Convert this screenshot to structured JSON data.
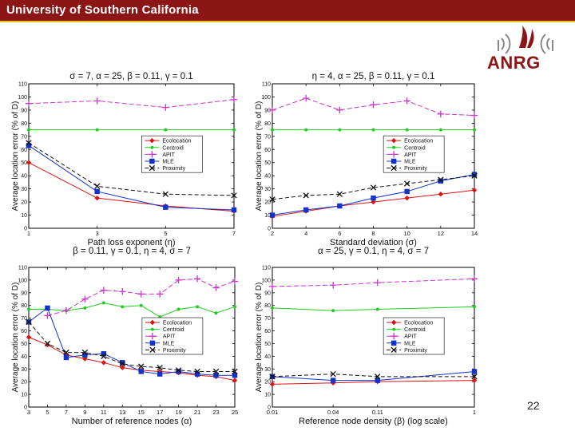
{
  "header": {
    "title": "University of Southern California"
  },
  "logo": {
    "text": "ANRG"
  },
  "page_number": "22",
  "colors": {
    "header_bg": "#8c1515",
    "header_line": "#f0c020",
    "ecolocation": "#dd1111",
    "centroid": "#22cc22",
    "apit": "#cc33cc",
    "mle": "#1133cc",
    "proximity": "#111111"
  },
  "chart_data": [
    {
      "type": "line",
      "title": "σ = 7, α = 25, β = 0.11, γ = 0.1",
      "xlabel": "Path loss exponent (η)",
      "ylabel": "Average location error (% of D)",
      "xlim": [
        1,
        7
      ],
      "ylim": [
        0,
        110
      ],
      "xscale": "linear",
      "xticks": [
        1,
        3,
        5,
        7
      ],
      "xticklabels": [
        "1",
        "3",
        "5",
        "7"
      ],
      "yticks": [
        0,
        10,
        20,
        30,
        40,
        50,
        60,
        70,
        80,
        90,
        100,
        110
      ],
      "yticklabels": [
        "0",
        "10",
        "20",
        "30",
        "40",
        "50",
        "60",
        "70",
        "80",
        "90",
        "100",
        "110"
      ],
      "legend_position": "center-right",
      "series": [
        {
          "name": "Ecolocation",
          "x": [
            1,
            3,
            5,
            7
          ],
          "values": [
            50,
            23,
            17,
            13
          ]
        },
        {
          "name": "Centroid",
          "x": [
            1,
            3,
            5,
            7
          ],
          "values": [
            75,
            75,
            75,
            75
          ]
        },
        {
          "name": "APIT",
          "x": [
            1,
            3,
            5,
            7
          ],
          "values": [
            95,
            97,
            92,
            98
          ]
        },
        {
          "name": "MLE",
          "x": [
            1,
            3,
            5,
            7
          ],
          "values": [
            63,
            28,
            16,
            14
          ]
        },
        {
          "name": "Proximity",
          "x": [
            1,
            3,
            5,
            7
          ],
          "values": [
            65,
            32,
            26,
            25
          ]
        }
      ]
    },
    {
      "type": "line",
      "title": "η = 4, α = 25, β = 0.11, γ = 0.1",
      "xlabel": "Standard deviation (σ)",
      "ylabel": "Average location error (% of D)",
      "xlim": [
        2,
        14
      ],
      "ylim": [
        0,
        110
      ],
      "xscale": "linear",
      "xticks": [
        2,
        4,
        6,
        8,
        10,
        12,
        14
      ],
      "xticklabels": [
        "2",
        "4",
        "6",
        "8",
        "10",
        "12",
        "14"
      ],
      "yticks": [
        0,
        10,
        20,
        30,
        40,
        50,
        60,
        70,
        80,
        90,
        100,
        110
      ],
      "yticklabels": [
        "0",
        "10",
        "20",
        "30",
        "40",
        "50",
        "60",
        "70",
        "80",
        "90",
        "100",
        "110"
      ],
      "legend_position": "center-right",
      "series": [
        {
          "name": "Ecolocation",
          "x": [
            2,
            4,
            6,
            8,
            10,
            12,
            14
          ],
          "values": [
            9,
            13,
            17,
            20,
            23,
            26,
            29
          ]
        },
        {
          "name": "Centroid",
          "x": [
            2,
            4,
            6,
            8,
            10,
            12,
            14
          ],
          "values": [
            75,
            75,
            75,
            75,
            75,
            75,
            75
          ]
        },
        {
          "name": "APIT",
          "x": [
            2,
            4,
            6,
            8,
            10,
            12,
            14
          ],
          "values": [
            90,
            99,
            90,
            94,
            97,
            87,
            86
          ]
        },
        {
          "name": "MLE",
          "x": [
            2,
            4,
            6,
            8,
            10,
            12,
            14
          ],
          "values": [
            10,
            14,
            17,
            23,
            28,
            36,
            41
          ]
        },
        {
          "name": "Proximity",
          "x": [
            2,
            4,
            6,
            8,
            10,
            12,
            14
          ],
          "values": [
            22,
            25,
            26,
            31,
            34,
            37,
            40
          ]
        }
      ]
    },
    {
      "type": "line",
      "title": "β = 0.11, γ = 0.1, η = 4, σ = 7",
      "xlabel": "Number of reference nodes (α)",
      "ylabel": "Average location error (% of D)",
      "xlim": [
        3,
        25
      ],
      "ylim": [
        0,
        110
      ],
      "xscale": "linear",
      "xticks": [
        3,
        5,
        7,
        9,
        11,
        13,
        15,
        17,
        19,
        21,
        23,
        25
      ],
      "xticklabels": [
        "3",
        "5",
        "7",
        "9",
        "11",
        "13",
        "15",
        "17",
        "19",
        "21",
        "23",
        "25"
      ],
      "yticks": [
        0,
        10,
        20,
        30,
        40,
        50,
        60,
        70,
        80,
        90,
        100,
        110
      ],
      "yticklabels": [
        "0",
        "10",
        "20",
        "30",
        "40",
        "50",
        "60",
        "70",
        "80",
        "90",
        "100",
        "110"
      ],
      "legend_position": "center-right",
      "series": [
        {
          "name": "Ecolocation",
          "x": [
            3,
            5,
            7,
            9,
            11,
            13,
            15,
            17,
            19,
            21,
            23,
            25
          ],
          "values": [
            55,
            49,
            41,
            38,
            35,
            31,
            29,
            28,
            27,
            25,
            24,
            21
          ]
        },
        {
          "name": "Centroid",
          "x": [
            3,
            5,
            7,
            9,
            11,
            13,
            15,
            17,
            19,
            21,
            23,
            25
          ],
          "values": [
            77,
            77,
            76,
            78,
            82,
            79,
            80,
            71,
            77,
            79,
            74,
            79
          ]
        },
        {
          "name": "APIT",
          "x": [
            3,
            5,
            7,
            9,
            11,
            13,
            15,
            17,
            19,
            21,
            23,
            25
          ],
          "values": [
            null,
            72,
            76,
            85,
            92,
            91,
            89,
            89,
            100,
            101,
            94,
            99
          ]
        },
        {
          "name": "MLE",
          "x": [
            3,
            5,
            7,
            9,
            11,
            13,
            15,
            17,
            19,
            21,
            23,
            25
          ],
          "values": [
            67,
            78,
            39,
            41,
            42,
            35,
            28,
            26,
            28,
            26,
            25,
            25
          ]
        },
        {
          "name": "Proximity",
          "x": [
            3,
            5,
            7,
            9,
            11,
            13,
            15,
            17,
            19,
            21,
            23,
            25
          ],
          "values": [
            67,
            50,
            43,
            43,
            40,
            34,
            32,
            31,
            29,
            28,
            28,
            28
          ]
        }
      ]
    },
    {
      "type": "line",
      "title": "α = 25, γ = 0.1, η = 4, σ = 7",
      "xlabel": "Reference node density (β) (log scale)",
      "ylabel": "Average location error (% of D)",
      "xlim": [
        0.01,
        1
      ],
      "ylim": [
        0,
        110
      ],
      "xscale": "log",
      "xticks": [
        0.01,
        0.04,
        0.11,
        1
      ],
      "xticklabels": [
        "0.01",
        "0.04",
        "0.11",
        "1"
      ],
      "yticks": [
        0,
        10,
        20,
        30,
        40,
        50,
        60,
        70,
        80,
        90,
        100,
        110
      ],
      "yticklabels": [
        "0",
        "10",
        "20",
        "30",
        "40",
        "50",
        "60",
        "70",
        "80",
        "90",
        "100",
        "110"
      ],
      "legend_position": "center-right",
      "series": [
        {
          "name": "Ecolocation",
          "x": [
            0.01,
            0.04,
            0.11,
            1
          ],
          "values": [
            18,
            19,
            20,
            21
          ]
        },
        {
          "name": "Centroid",
          "x": [
            0.01,
            0.04,
            0.11,
            1
          ],
          "values": [
            78,
            76,
            77,
            79
          ]
        },
        {
          "name": "APIT",
          "x": [
            0.01,
            0.04,
            0.11,
            1
          ],
          "values": [
            95,
            96,
            98,
            101
          ]
        },
        {
          "name": "MLE",
          "x": [
            0.01,
            0.04,
            0.11,
            1
          ],
          "values": [
            24,
            21,
            21,
            28
          ]
        },
        {
          "name": "Proximity",
          "x": [
            0.01,
            0.04,
            0.11,
            1
          ],
          "values": [
            24,
            26,
            24,
            24
          ]
        }
      ]
    }
  ]
}
